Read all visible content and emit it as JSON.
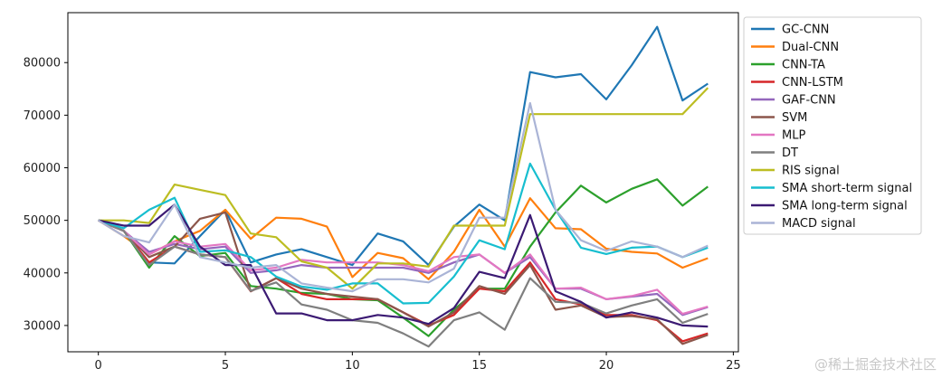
{
  "chart_data": {
    "type": "line",
    "title": "",
    "xlabel": "",
    "ylabel": "",
    "xlim": [
      -1.2,
      25.2
    ],
    "ylim": [
      25000,
      89500
    ],
    "xticks": [
      0,
      5,
      10,
      15,
      20,
      25
    ],
    "yticks": [
      30000,
      40000,
      50000,
      60000,
      70000,
      80000
    ],
    "grid": false,
    "legend": "outside-right",
    "x": [
      0,
      1,
      2,
      3,
      4,
      5,
      6,
      7,
      8,
      9,
      10,
      11,
      12,
      13,
      14,
      15,
      16,
      17,
      18,
      19,
      20,
      21,
      22,
      23,
      24
    ],
    "series": [
      {
        "name": "GC-CNN",
        "color": "#1f77b4",
        "values": [
          50000,
          48000,
          42000,
          41800,
          47000,
          52000,
          42000,
          43500,
          44500,
          43000,
          41500,
          47500,
          46000,
          41500,
          48800,
          53000,
          50000,
          78200,
          77200,
          77800,
          73000,
          79500,
          86800,
          72800,
          76000
        ]
      },
      {
        "name": "Dual-CNN",
        "color": "#ff7f0e",
        "values": [
          50000,
          47000,
          43500,
          46000,
          48000,
          52000,
          46500,
          50500,
          50300,
          48800,
          39200,
          43800,
          42800,
          38800,
          44000,
          52000,
          45000,
          54200,
          48500,
          48300,
          44600,
          44000,
          43700,
          41000,
          42800
        ]
      },
      {
        "name": "CNN-TA",
        "color": "#2ca02c",
        "values": [
          50000,
          48000,
          41000,
          47000,
          43200,
          43800,
          37500,
          37000,
          36200,
          36000,
          35000,
          34800,
          31500,
          28000,
          33000,
          37000,
          37000,
          45000,
          51500,
          56600,
          53400,
          56000,
          57800,
          52800,
          56400
        ]
      },
      {
        "name": "CNN-LSTM",
        "color": "#d62728",
        "values": [
          50000,
          48000,
          42000,
          45000,
          43500,
          43000,
          36500,
          39000,
          36000,
          35000,
          35000,
          35000,
          32500,
          30000,
          32000,
          37000,
          36500,
          42000,
          35000,
          34000,
          32000,
          32000,
          31000,
          27000,
          28500
        ]
      },
      {
        "name": "GAF-CNN",
        "color": "#9467bd",
        "values": [
          50000,
          48000,
          44000,
          45500,
          44500,
          45000,
          40000,
          40500,
          41500,
          41000,
          41000,
          41000,
          41000,
          40000,
          42000,
          43500,
          40000,
          43000,
          37000,
          37000,
          35000,
          35500,
          36000,
          32000,
          33500
        ]
      },
      {
        "name": "SVM",
        "color": "#8c564b",
        "values": [
          50000,
          48000,
          43000,
          45000,
          50300,
          51500,
          36500,
          39000,
          37000,
          36000,
          35500,
          35000,
          32500,
          29800,
          32500,
          37500,
          36000,
          41500,
          33000,
          33800,
          31600,
          31800,
          31200,
          26500,
          28200
        ]
      },
      {
        "name": "MLP",
        "color": "#e377c2",
        "values": [
          50000,
          48000,
          43500,
          46000,
          45000,
          45500,
          40500,
          41000,
          42500,
          42000,
          42000,
          42000,
          41500,
          40300,
          43000,
          43500,
          40000,
          43500,
          37000,
          37200,
          35000,
          35600,
          36800,
          32200,
          33600
        ]
      },
      {
        "name": "DT",
        "color": "#7f7f7f",
        "values": [
          50000,
          48000,
          41500,
          45000,
          43500,
          43000,
          36600,
          38200,
          34000,
          33000,
          31000,
          30500,
          28500,
          26000,
          31000,
          32500,
          29200,
          39000,
          34500,
          34300,
          32300,
          33800,
          35000,
          30500,
          32200
        ]
      },
      {
        "name": "RIS signal",
        "color": "#bcbd22",
        "values": [
          50000,
          50000,
          49500,
          56800,
          55800,
          54800,
          47500,
          46800,
          42200,
          41000,
          37000,
          41800,
          41800,
          41200,
          49000,
          49000,
          49000,
          70200,
          70200,
          70200,
          70200,
          70200,
          70200,
          70200,
          75200
        ]
      },
      {
        "name": "SMA short-term signal",
        "color": "#17becf",
        "values": [
          50000,
          48500,
          52000,
          54300,
          44000,
          44300,
          43000,
          39300,
          37400,
          36800,
          38000,
          38000,
          34200,
          34300,
          39300,
          46200,
          44500,
          60800,
          52000,
          44800,
          43600,
          44800,
          45000,
          43000,
          44800
        ]
      },
      {
        "name": "SMA long-term signal",
        "color": "#3b1a73",
        "values": [
          50000,
          49000,
          49000,
          53000,
          45000,
          41500,
          41500,
          32300,
          32300,
          31000,
          31000,
          32000,
          31500,
          30300,
          33300,
          40200,
          39000,
          51000,
          36500,
          34500,
          31500,
          32500,
          31500,
          30000,
          29800
        ]
      },
      {
        "name": "MACD signal",
        "color": "#aab4d6",
        "values": [
          50000,
          47000,
          45800,
          53000,
          43000,
          42000,
          41000,
          41500,
          38000,
          37200,
          36500,
          38800,
          38800,
          38200,
          40800,
          50500,
          50500,
          72300,
          52000,
          46200,
          44200,
          46000,
          45000,
          43000,
          45200
        ]
      }
    ]
  },
  "watermark": "@稀土掘金技术社区"
}
